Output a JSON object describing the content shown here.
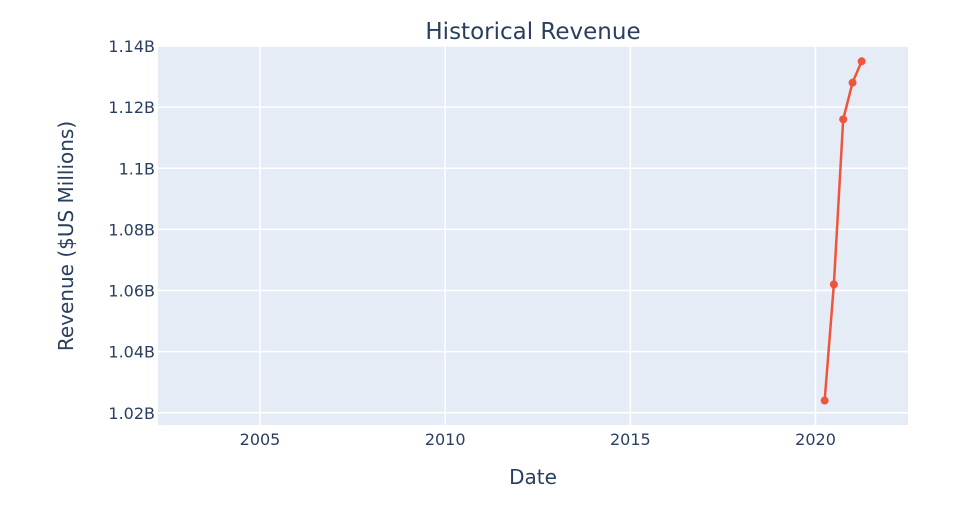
{
  "chart_data": {
    "type": "line",
    "title": "Historical Revenue",
    "xlabel": "Date",
    "ylabel": "Revenue ($US Millions)",
    "xlim": [
      "2002-04-01",
      "2022-07-01"
    ],
    "ylim": [
      1.016,
      1.14
    ],
    "x_ticks": [
      {
        "value": "2005-01-01",
        "label": "2005"
      },
      {
        "value": "2010-01-01",
        "label": "2010"
      },
      {
        "value": "2015-01-01",
        "label": "2015"
      },
      {
        "value": "2020-01-01",
        "label": "2020"
      }
    ],
    "y_ticks": [
      {
        "value": 1.02,
        "label": "1.02B"
      },
      {
        "value": 1.04,
        "label": "1.04B"
      },
      {
        "value": 1.06,
        "label": "1.06B"
      },
      {
        "value": 1.08,
        "label": "1.08B"
      },
      {
        "value": 1.1,
        "label": "1.1B"
      },
      {
        "value": 1.12,
        "label": "1.12B"
      },
      {
        "value": 1.14,
        "label": "1.14B"
      }
    ],
    "series": [
      {
        "color": "#ef553b",
        "points": [
          {
            "x": "2020-03-31",
            "y": 1.024
          },
          {
            "x": "2020-06-30",
            "y": 1.062
          },
          {
            "x": "2020-09-30",
            "y": 1.116
          },
          {
            "x": "2020-12-31",
            "y": 1.128
          },
          {
            "x": "2021-03-31",
            "y": 1.135
          }
        ]
      }
    ],
    "grid": true,
    "plot_background": "#e5ecf6",
    "grid_color": "#ffffff",
    "text_color": "#2a3f5f"
  }
}
